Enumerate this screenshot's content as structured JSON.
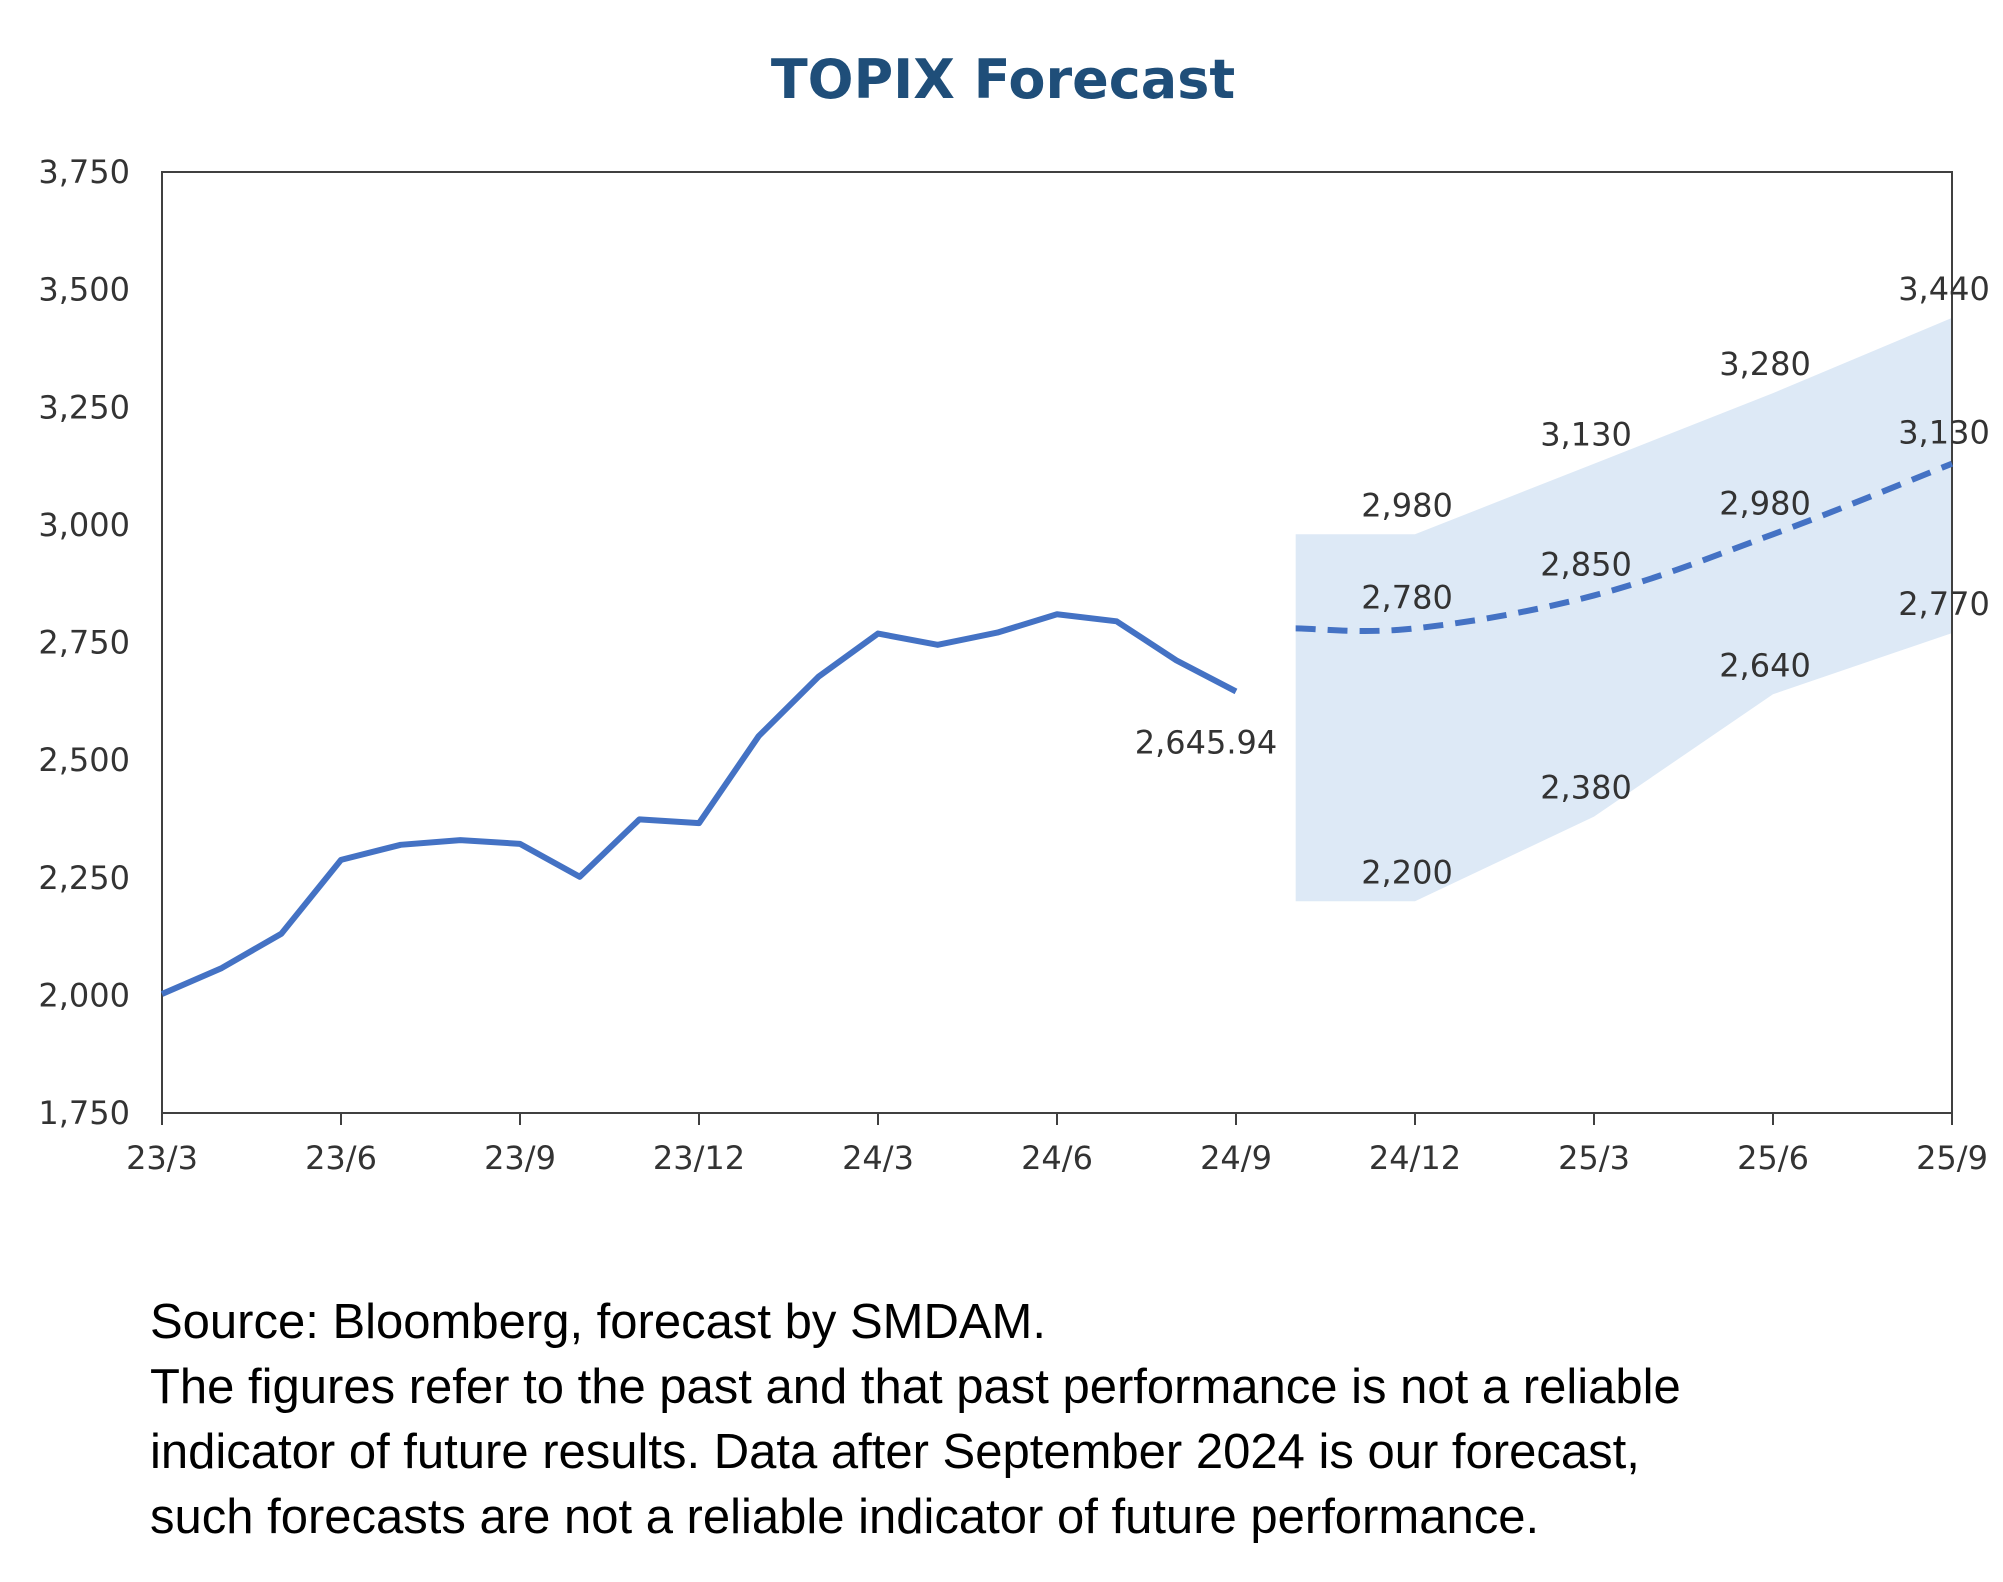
{
  "chart_data": {
    "type": "line",
    "title": "TOPIX Forecast",
    "xlabel": "",
    "ylabel": "",
    "ylim": [
      1750,
      3750
    ],
    "yticks": [
      1750,
      2000,
      2250,
      2500,
      2750,
      3000,
      3250,
      3500,
      3750
    ],
    "ytick_labels": [
      "1,750",
      "2,000",
      "2,250",
      "2,500",
      "2,750",
      "3,000",
      "3,250",
      "3,500",
      "3,750"
    ],
    "xticks": [
      "23/3",
      "23/6",
      "23/9",
      "23/12",
      "24/3",
      "24/6",
      "24/9",
      "24/12",
      "25/3",
      "25/6",
      "25/9"
    ],
    "grid": false,
    "legend": "none",
    "colors": {
      "actual": "#4472c4",
      "forecast": "#4472c4",
      "band": "#dde9f6",
      "title": "#1f4e79",
      "axis": "#404040"
    },
    "series": [
      {
        "style": "solid",
        "x": [
          0,
          1,
          2,
          3,
          4,
          5,
          6,
          7,
          8,
          9,
          10,
          11,
          12,
          13,
          14,
          15,
          16,
          17,
          18
        ],
        "y": [
          2003,
          2058,
          2131,
          2288,
          2320,
          2330,
          2322,
          2252,
          2374,
          2366,
          2551,
          2677,
          2769,
          2745,
          2771,
          2810,
          2795,
          2712,
          2645.94
        ],
        "end_label": "2,645.94"
      },
      {
        "style": "dashed",
        "x": [
          19,
          21,
          24,
          27,
          30
        ],
        "y": [
          2780,
          2780,
          2850,
          2980,
          3130
        ],
        "labels": [
          "",
          "2,780",
          "2,850",
          "2,980",
          "3,130"
        ]
      }
    ],
    "band": {
      "x": [
        19,
        21,
        24,
        27,
        30
      ],
      "upper": [
        2980,
        2980,
        3130,
        3280,
        3440
      ],
      "lower": [
        2200,
        2200,
        2380,
        2640,
        2770
      ],
      "upper_labels": [
        "",
        "2,980",
        "3,130",
        "3,280",
        "3,440"
      ],
      "lower_labels": [
        "",
        "2,200",
        "2,380",
        "2,640",
        "2,770"
      ]
    }
  },
  "notes": {
    "source": "Source: Bloomberg, forecast by SMDAM.",
    "line1": "The figures refer to the past and that past performance is not a reliable",
    "line2": "indicator of future results. Data after September 2024 is our forecast,",
    "line3": "such forecasts are not a reliable indicator of future performance."
  }
}
